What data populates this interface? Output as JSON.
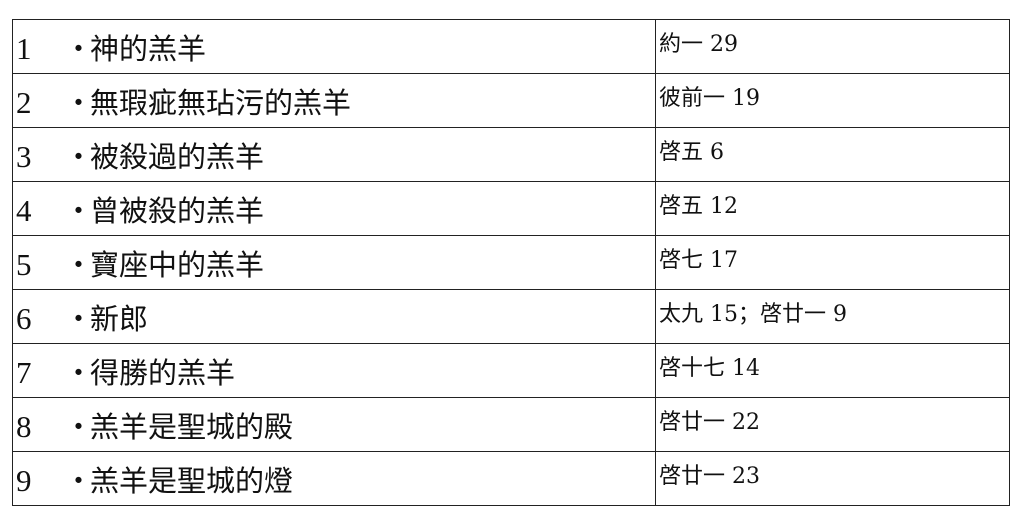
{
  "rows": [
    {
      "num": "1",
      "dot": "・",
      "title": "神的羔羊",
      "ref": "約一 29"
    },
    {
      "num": "2",
      "dot": "・",
      "title": "無瑕疵無玷污的羔羊",
      "ref": "彼前一 19"
    },
    {
      "num": "3",
      "dot": "・",
      "title": "被殺過的羔羊",
      "ref": "啓五 6"
    },
    {
      "num": "4",
      "dot": "・",
      "title": "曾被殺的羔羊",
      "ref": "啓五 12"
    },
    {
      "num": "5",
      "dot": "・",
      "title": "寶座中的羔羊",
      "ref": "啓七 17"
    },
    {
      "num": "6",
      "dot": "・",
      "title": "新郎",
      "ref": "太九 15；啓廿一 9"
    },
    {
      "num": "7",
      "dot": "・",
      "title": "得勝的羔羊",
      "ref": "啓十七 14"
    },
    {
      "num": "8",
      "dot": "・",
      "title": "羔羊是聖城的殿",
      "ref": "啓廿一 22"
    },
    {
      "num": "9",
      "dot": "・",
      "title": "羔羊是聖城的燈",
      "ref": "啓廿一 23"
    }
  ]
}
